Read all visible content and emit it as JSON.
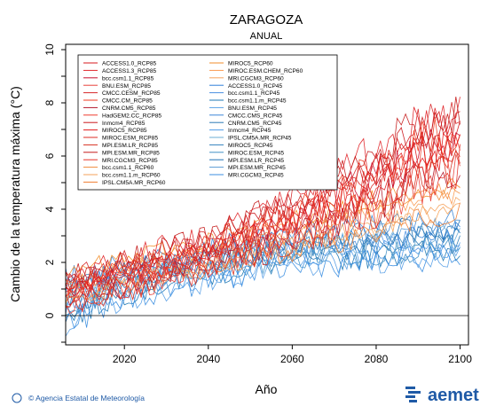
{
  "chart_data": {
    "type": "line",
    "title": "ZARAGOZA",
    "subtitle": "ANUAL",
    "xlabel": "Año",
    "ylabel": "Cambio de la temperatura máxima (°C)",
    "xlim": [
      2006,
      2102
    ],
    "ylim": [
      -1.1,
      10.2
    ],
    "x_ticks": [
      2020,
      2040,
      2060,
      2080,
      2100
    ],
    "y_ticks": [
      0,
      2,
      4,
      6,
      8,
      10
    ],
    "grid": false,
    "legend_position": "top-left",
    "colors": {
      "rcp85": "#e31a1c",
      "rcp60": "#f5883a",
      "rcp45": "#3d8fe0",
      "zero_line": "#000000"
    },
    "series": [
      {
        "name": "ACCESS1.0_RCP85",
        "scenario": "rcp85",
        "color": "#d7191c"
      },
      {
        "name": "ACCESS1.3_RCP85",
        "scenario": "rcp85",
        "color": "#e0262b"
      },
      {
        "name": "bcc.csm1.1_RCP85",
        "scenario": "rcp85",
        "color": "#c8102e"
      },
      {
        "name": "BNU.ESM_RCP85",
        "scenario": "rcp85",
        "color": "#e8403a"
      },
      {
        "name": "CMCC.CESM_RCP85",
        "scenario": "rcp85",
        "color": "#d62728"
      },
      {
        "name": "CMCC.CM_RCP85",
        "scenario": "rcp85",
        "color": "#f03b20"
      },
      {
        "name": "CNRM.CM5_RCP85",
        "scenario": "rcp85",
        "color": "#b2182b"
      },
      {
        "name": "HadGEM2.CC_RCP85",
        "scenario": "rcp85",
        "color": "#ef3b2c"
      },
      {
        "name": "Inmcm4_RCP85",
        "scenario": "rcp85",
        "color": "#cb181d"
      },
      {
        "name": "MIROC5_RCP85",
        "scenario": "rcp85",
        "color": "#e31a1c"
      },
      {
        "name": "MIROC.ESM_RCP85",
        "scenario": "rcp85",
        "color": "#de2d26"
      },
      {
        "name": "MPI.ESM.LR_RCP85",
        "scenario": "rcp85",
        "color": "#d7301f"
      },
      {
        "name": "MPI.ESM.MR_RCP85",
        "scenario": "rcp85",
        "color": "#c51b1b"
      },
      {
        "name": "MRI.CGCM3_RCP85",
        "scenario": "rcp85",
        "color": "#e6332a"
      },
      {
        "name": "bcc.csm1.1_RCP60",
        "scenario": "rcp60",
        "color": "#f08a3c"
      },
      {
        "name": "bcc.csm1.1.m_RCP60",
        "scenario": "rcp60",
        "color": "#f4a259"
      },
      {
        "name": "IPSL.CM5A.MR_RCP60",
        "scenario": "rcp60",
        "color": "#ee7d31"
      },
      {
        "name": "MIROC5_RCP60",
        "scenario": "rcp60",
        "color": "#f28e2b"
      },
      {
        "name": "MIROC.ESM.CHEM_RCP60",
        "scenario": "rcp60",
        "color": "#fb9a50"
      },
      {
        "name": "MRI.CGCM3_RCP60",
        "scenario": "rcp60",
        "color": "#f5a25d"
      },
      {
        "name": "ACCESS1.0_RCP45",
        "scenario": "rcp45",
        "color": "#2f7ed8"
      },
      {
        "name": "bcc.csm1.1_RCP45",
        "scenario": "rcp45",
        "color": "#4a90e2"
      },
      {
        "name": "bcc.csm1.1.m_RCP45",
        "scenario": "rcp45",
        "color": "#1f78b4"
      },
      {
        "name": "BNU.ESM_RCP45",
        "scenario": "rcp45",
        "color": "#5aa0e6"
      },
      {
        "name": "CMCC.CMS_RCP45",
        "scenario": "rcp45",
        "color": "#3a86d8"
      },
      {
        "name": "CNRM.CM5_RCP45",
        "scenario": "rcp45",
        "color": "#2c7bb6"
      },
      {
        "name": "Inmcm4_RCP45",
        "scenario": "rcp45",
        "color": "#4f9be8"
      },
      {
        "name": "IPSL.CM5A.MR_RCP45",
        "scenario": "rcp45",
        "color": "#6baed6"
      },
      {
        "name": "MIROC5_RCP45",
        "scenario": "rcp45",
        "color": "#3182bd"
      },
      {
        "name": "MIROC.ESM_RCP45",
        "scenario": "rcp45",
        "color": "#4292c6"
      },
      {
        "name": "MPI.ESM.LR_RCP45",
        "scenario": "rcp45",
        "color": "#2171b5"
      },
      {
        "name": "MPI.ESM.MR_RCP45",
        "scenario": "rcp45",
        "color": "#5b9bd5"
      },
      {
        "name": "MRI.CGCM3_RCP45",
        "scenario": "rcp45",
        "color": "#3b8ee0"
      }
    ],
    "envelope": {
      "years": [
        2006,
        2020,
        2040,
        2060,
        2080,
        2090,
        2100
      ],
      "rcp85": {
        "low": [
          0.1,
          0.6,
          1.4,
          2.3,
          3.4,
          4.2,
          4.8
        ],
        "high": [
          1.9,
          2.6,
          3.6,
          5.1,
          7.0,
          8.2,
          8.7
        ]
      },
      "rcp60": {
        "low": [
          0.1,
          0.6,
          1.3,
          1.9,
          2.6,
          3.1,
          3.4
        ],
        "high": [
          1.8,
          2.4,
          3.1,
          3.9,
          4.6,
          5.0,
          5.3
        ]
      },
      "rcp45": {
        "low": [
          -0.8,
          0.3,
          1.0,
          1.5,
          1.7,
          1.8,
          1.9
        ],
        "high": [
          1.9,
          2.4,
          3.0,
          3.5,
          3.9,
          4.0,
          4.1
        ]
      }
    }
  },
  "footer": {
    "credit": "© Agencia Estatal de Meteorología",
    "logo": "aemet"
  }
}
